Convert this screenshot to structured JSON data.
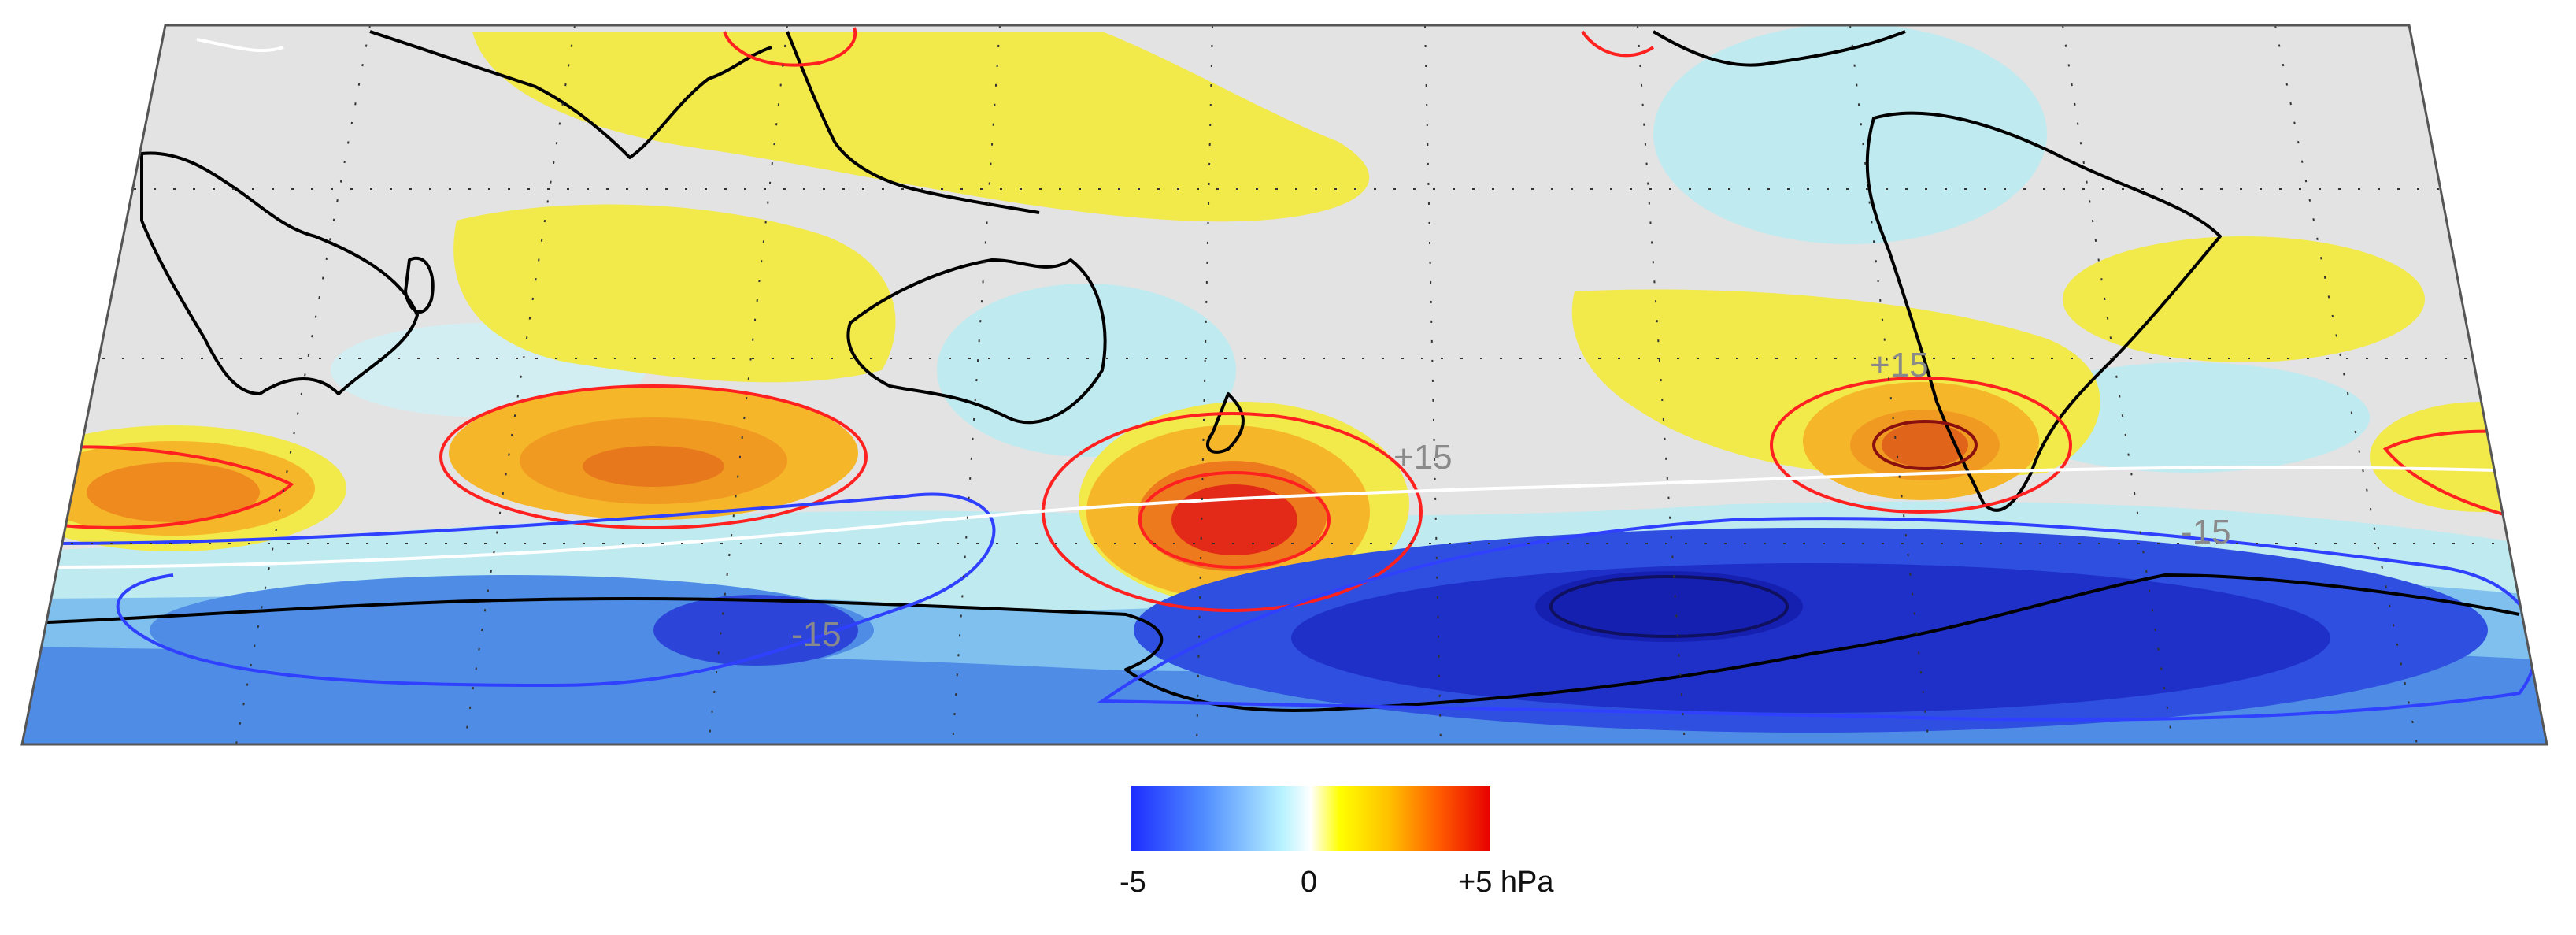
{
  "map": {
    "contour_labels": {
      "nz_high": "+15",
      "sa_high": "+15",
      "indian_low": "-15",
      "atlantic_low": "-15"
    },
    "pressure_centers": [
      {
        "name": "south-atlantic-high",
        "sign": "positive"
      },
      {
        "name": "indian-ocean-high",
        "sign": "positive"
      },
      {
        "name": "tasman-new-zealand-high",
        "sign": "positive"
      },
      {
        "name": "south-of-south-america-high",
        "sign": "positive"
      },
      {
        "name": "southern-indian-ocean-low",
        "sign": "negative"
      },
      {
        "name": "amundsen-bellingshausen-low",
        "sign": "negative"
      }
    ]
  },
  "colorbar": {
    "min_label": "-5",
    "mid_label": "0",
    "max_label": "+5 hPa",
    "colors": [
      "#1e2dff",
      "#4f8cff",
      "#b7f2ff",
      "#ffffff",
      "#ffff00",
      "#ffbf00",
      "#ff5a00",
      "#e80000"
    ]
  },
  "colors": {
    "land_neutral": "#e3e3e3",
    "positive_contour": "#ff2020",
    "negative_contour": "#3040ff",
    "zero_contour": "#ffffff",
    "coastline": "#000000"
  }
}
